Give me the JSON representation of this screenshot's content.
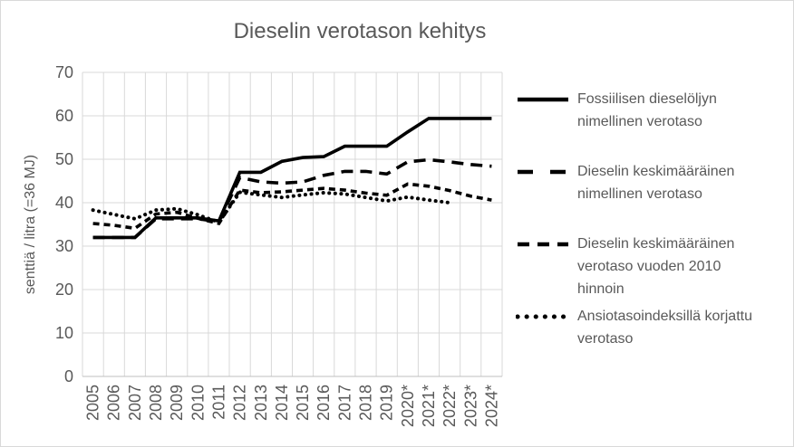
{
  "chart_data": {
    "type": "line",
    "title": "Dieselin verotason kehitys",
    "ylabel": "senttiä / litra (=36 MJ)",
    "xlabel": "",
    "ylim": [
      0,
      70
    ],
    "yticks": [
      0,
      10,
      20,
      30,
      40,
      50,
      60,
      70
    ],
    "grid": "both",
    "legend_position": "right",
    "line_color": "#000000",
    "axis_text_color": "#595959",
    "grid_color": "#d9d9d9",
    "categories": [
      "2005",
      "2006",
      "2007",
      "2008",
      "2009",
      "2010",
      "2011",
      "2012",
      "2013",
      "2014",
      "2015",
      "2016",
      "2017",
      "2018",
      "2019",
      "2020*",
      "2021*",
      "2022*",
      "2023*",
      "2024*"
    ],
    "series": [
      {
        "name": "Fossiilisen dieselöljyn nimellinen verotaso",
        "label_lines": [
          "Fossiilisen dieselöljyn",
          "nimellinen verotaso"
        ],
        "style": "solid",
        "values": [
          32,
          32,
          32,
          36.5,
          36.5,
          36.5,
          35.8,
          47,
          47,
          49.5,
          50.4,
          50.6,
          53,
          53,
          53,
          56.3,
          59.4,
          59.4,
          59.4,
          59.4
        ]
      },
      {
        "name": "Dieselin keskimääräinen nimellinen verotaso",
        "label_lines": [
          "Dieselin keskimääräinen",
          "nimellinen verotaso"
        ],
        "style": "long-dash",
        "values": [
          32,
          32,
          32,
          36.3,
          36.3,
          36.3,
          35.6,
          45.8,
          44.8,
          44.5,
          44.8,
          46.3,
          47.2,
          47.2,
          46.6,
          49.4,
          49.9,
          49.4,
          48.8,
          48.4
        ]
      },
      {
        "name": "Dieselin keskimääräinen verotaso vuoden 2010 hinnoin",
        "label_lines": [
          "Dieselin keskimääräinen",
          "verotaso vuoden 2010",
          "hinnoin"
        ],
        "style": "short-dash",
        "values": [
          35.2,
          34.8,
          34.1,
          37.4,
          37.8,
          36.4,
          35.2,
          42.9,
          42.3,
          42.5,
          42.9,
          43.3,
          42.9,
          42.2,
          41.7,
          44.3,
          43.8,
          42.8,
          41.5,
          40.6
        ]
      },
      {
        "name": "Ansiotasoindeksillä korjattu verotaso",
        "label_lines": [
          "Ansiotasoindeksillä korjattu",
          "verotaso"
        ],
        "style": "dotted",
        "values": [
          38.3,
          37.3,
          36.3,
          38.3,
          38.6,
          37.2,
          35.5,
          42.4,
          41.8,
          41.2,
          41.8,
          42.3,
          42,
          41.2,
          40.4,
          41.3,
          40.6,
          40,
          null,
          null
        ]
      }
    ]
  }
}
